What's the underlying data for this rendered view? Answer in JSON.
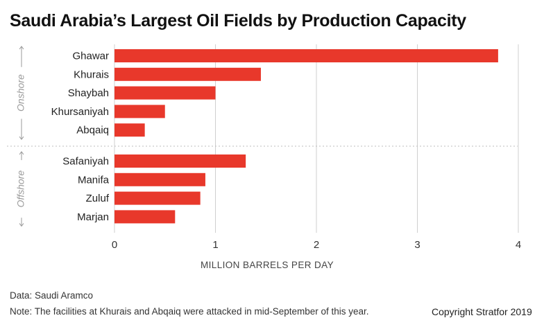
{
  "title": "Saudi Arabia’s Largest Oil Fields by Production Capacity",
  "source": "Data: Saudi Aramco",
  "note": "Note: The facilities at Khurais and Abqaiq were attacked in mid-September of this year.",
  "copyright": "Copyright Stratfor 2019",
  "colors": {
    "bar": "#e8382b",
    "grid": "#cfcfcf",
    "group_label": "#9a9a9a"
  },
  "chart_data": {
    "type": "bar",
    "orientation": "horizontal",
    "title": "Saudi Arabia’s Largest Oil Fields by Production Capacity",
    "xlabel": "MILLION BARRELS PER DAY",
    "ylabel": "",
    "xlim": [
      0,
      4
    ],
    "xticks": [
      0,
      1,
      2,
      3,
      4
    ],
    "grid": true,
    "groups": [
      {
        "name": "Onshore",
        "categories": [
          "Ghawar",
          "Khurais",
          "Shaybah",
          "Khursaniyah",
          "Abqaiq"
        ],
        "values": [
          3.8,
          1.45,
          1.0,
          0.5,
          0.3
        ]
      },
      {
        "name": "Offshore",
        "categories": [
          "Safaniyah",
          "Manifa",
          "Zuluf",
          "Marjan"
        ],
        "values": [
          1.3,
          0.9,
          0.85,
          0.6
        ]
      }
    ]
  }
}
